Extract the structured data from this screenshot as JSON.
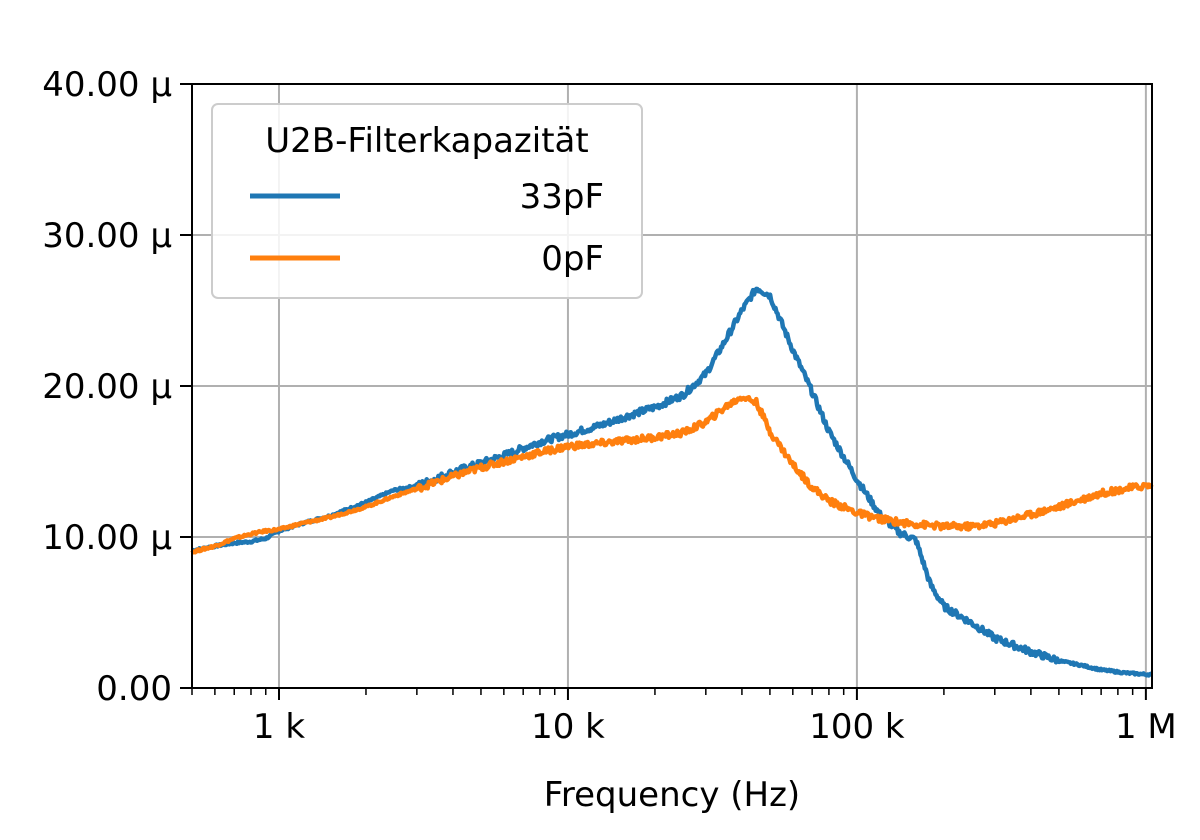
{
  "chart_data": {
    "type": "line",
    "title": "",
    "xlabel": "Frequency (Hz)",
    "ylabel": "",
    "x_scale": "log",
    "xlim": [
      500,
      1050000
    ],
    "ylim": [
      0,
      40
    ],
    "grid": true,
    "x_ticks": [
      {
        "value": 1000,
        "label": "1 k"
      },
      {
        "value": 10000,
        "label": "10 k"
      },
      {
        "value": 100000,
        "label": "100 k"
      },
      {
        "value": 1000000,
        "label": "1 M"
      }
    ],
    "y_ticks": [
      {
        "value": 0,
        "label": "0.00"
      },
      {
        "value": 10,
        "label": "10.00 µ"
      },
      {
        "value": 20,
        "label": "20.00 µ"
      },
      {
        "value": 30,
        "label": "30.00 µ"
      },
      {
        "value": 40,
        "label": "40.00 µ"
      }
    ],
    "legend": {
      "title": "U2B-Filterkapazität",
      "position": "top-left"
    },
    "series": [
      {
        "name": "33pF",
        "color": "#1f77b4",
        "x": [
          500,
          600,
          700,
          800,
          900,
          1000,
          1200,
          1500,
          2000,
          2500,
          3000,
          4000,
          5000,
          6000,
          8000,
          10000,
          13000,
          16000,
          20000,
          25000,
          30000,
          35000,
          40000,
          45000,
          50000,
          60000,
          70000,
          80000,
          100000,
          120000,
          140000,
          160000,
          180000,
          200000,
          250000,
          300000,
          400000,
          500000,
          600000,
          700000,
          850000,
          1000000,
          1050000
        ],
        "y": [
          9.1,
          9.4,
          9.6,
          9.7,
          9.9,
          10.4,
          10.9,
          11.4,
          12.3,
          13.1,
          13.4,
          14.3,
          14.9,
          15.4,
          16.3,
          16.8,
          17.4,
          18.0,
          18.6,
          19.4,
          20.8,
          23.0,
          25.0,
          26.5,
          26.0,
          22.4,
          19.6,
          17.0,
          13.8,
          11.5,
          10.3,
          9.8,
          6.8,
          5.4,
          4.3,
          3.3,
          2.4,
          1.8,
          1.5,
          1.2,
          1.0,
          0.9,
          0.9
        ]
      },
      {
        "name": "0pF",
        "color": "#ff7f0e",
        "x": [
          500,
          600,
          700,
          800,
          900,
          1000,
          1200,
          1500,
          2000,
          2500,
          3000,
          4000,
          5000,
          6000,
          8000,
          10000,
          13000,
          16000,
          20000,
          25000,
          30000,
          35000,
          40000,
          45000,
          50000,
          60000,
          70000,
          80000,
          100000,
          120000,
          150000,
          200000,
          250000,
          300000,
          400000,
          500000,
          600000,
          700000,
          850000,
          1000000,
          1050000
        ],
        "y": [
          9.0,
          9.4,
          9.9,
          10.2,
          10.4,
          10.5,
          10.9,
          11.3,
          12.0,
          12.7,
          13.2,
          14.0,
          14.6,
          15.0,
          15.6,
          16.0,
          16.2,
          16.4,
          16.6,
          16.9,
          17.6,
          18.6,
          19.3,
          18.9,
          17.0,
          14.8,
          13.3,
          12.4,
          11.6,
          11.2,
          10.9,
          10.7,
          10.7,
          10.9,
          11.5,
          12.0,
          12.5,
          12.9,
          13.2,
          13.4,
          13.4
        ]
      }
    ]
  }
}
